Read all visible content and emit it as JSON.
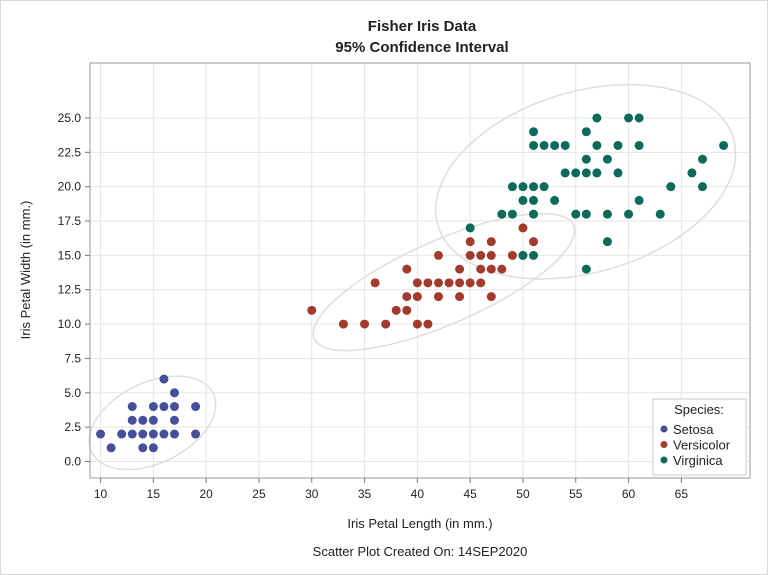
{
  "chart_data": {
    "type": "scatter",
    "title": "Fisher Iris Data",
    "subtitle": "95% Confidence Interval",
    "xlabel": "Iris Petal Length (in mm.)",
    "ylabel": "Iris Petal Width (in mm.)",
    "footnote": "Scatter Plot Created On: 14SEP2020",
    "xlim": [
      9,
      71.5
    ],
    "ylim": [
      -1.2,
      29
    ],
    "xticks": [
      10,
      15,
      20,
      25,
      30,
      35,
      40,
      45,
      50,
      55,
      60,
      65
    ],
    "xtick_labels": [
      "10",
      "15",
      "20",
      "25",
      "30",
      "35",
      "40",
      "45",
      "50",
      "55",
      "60",
      "65"
    ],
    "yticks": [
      0,
      2.5,
      5,
      7.5,
      10,
      12.5,
      15,
      17.5,
      20,
      22.5,
      25
    ],
    "ytick_labels": [
      "0.0",
      "2.5",
      "5.0",
      "7.5",
      "10.0",
      "12.5",
      "15.0",
      "17.5",
      "20.0",
      "22.5",
      "25.0"
    ],
    "grid": true,
    "ellipse_level": 0.95,
    "ellipse_color": "#e2ded6",
    "legend": {
      "title": "Species:",
      "placement": "bottom-right"
    },
    "series": [
      {
        "name": "Setosa",
        "color": "#45509a",
        "points": [
          [
            16,
            6
          ],
          [
            17,
            5
          ],
          [
            13,
            4
          ],
          [
            15,
            4
          ],
          [
            16,
            4
          ],
          [
            17,
            4
          ],
          [
            19,
            4
          ],
          [
            13,
            3
          ],
          [
            14,
            3
          ],
          [
            15,
            3
          ],
          [
            17,
            3
          ],
          [
            10,
            2
          ],
          [
            12,
            2
          ],
          [
            13,
            2
          ],
          [
            14,
            2
          ],
          [
            15,
            2
          ],
          [
            16,
            2
          ],
          [
            17,
            2
          ],
          [
            19,
            2
          ],
          [
            11,
            1
          ],
          [
            14,
            1
          ],
          [
            15,
            1
          ]
        ]
      },
      {
        "name": "Versicolor",
        "color": "#a23b2e",
        "points": [
          [
            50,
            17
          ],
          [
            45,
            16
          ],
          [
            47,
            16
          ],
          [
            51,
            16
          ],
          [
            42,
            15
          ],
          [
            45,
            15
          ],
          [
            46,
            15
          ],
          [
            47,
            15
          ],
          [
            49,
            15
          ],
          [
            39,
            14
          ],
          [
            44,
            14
          ],
          [
            46,
            14
          ],
          [
            47,
            14
          ],
          [
            48,
            14
          ],
          [
            36,
            13
          ],
          [
            40,
            13
          ],
          [
            41,
            13
          ],
          [
            42,
            13
          ],
          [
            43,
            13
          ],
          [
            44,
            13
          ],
          [
            45,
            13
          ],
          [
            46,
            13
          ],
          [
            39,
            12
          ],
          [
            40,
            12
          ],
          [
            42,
            12
          ],
          [
            44,
            12
          ],
          [
            47,
            12
          ],
          [
            30,
            11
          ],
          [
            38,
            11
          ],
          [
            39,
            11
          ],
          [
            33,
            10
          ],
          [
            35,
            10
          ],
          [
            37,
            10
          ],
          [
            40,
            10
          ],
          [
            41,
            10
          ]
        ]
      },
      {
        "name": "Virginica",
        "color": "#0b6a5c",
        "points": [
          [
            57,
            25
          ],
          [
            60,
            25
          ],
          [
            61,
            25
          ],
          [
            51,
            24
          ],
          [
            56,
            24
          ],
          [
            51,
            23
          ],
          [
            52,
            23
          ],
          [
            53,
            23
          ],
          [
            54,
            23
          ],
          [
            57,
            23
          ],
          [
            59,
            23
          ],
          [
            61,
            23
          ],
          [
            69,
            23
          ],
          [
            56,
            22
          ],
          [
            58,
            22
          ],
          [
            67,
            22
          ],
          [
            54,
            21
          ],
          [
            55,
            21
          ],
          [
            56,
            21
          ],
          [
            57,
            21
          ],
          [
            59,
            21
          ],
          [
            66,
            21
          ],
          [
            49,
            20
          ],
          [
            50,
            20
          ],
          [
            51,
            20
          ],
          [
            52,
            20
          ],
          [
            64,
            20
          ],
          [
            67,
            20
          ],
          [
            50,
            19
          ],
          [
            51,
            19
          ],
          [
            53,
            19
          ],
          [
            61,
            19
          ],
          [
            48,
            18
          ],
          [
            49,
            18
          ],
          [
            51,
            18
          ],
          [
            55,
            18
          ],
          [
            56,
            18
          ],
          [
            58,
            18
          ],
          [
            60,
            18
          ],
          [
            63,
            18
          ],
          [
            45,
            17
          ],
          [
            58,
            16
          ],
          [
            50,
            15
          ],
          [
            51,
            15
          ],
          [
            56,
            14
          ]
        ]
      }
    ]
  }
}
